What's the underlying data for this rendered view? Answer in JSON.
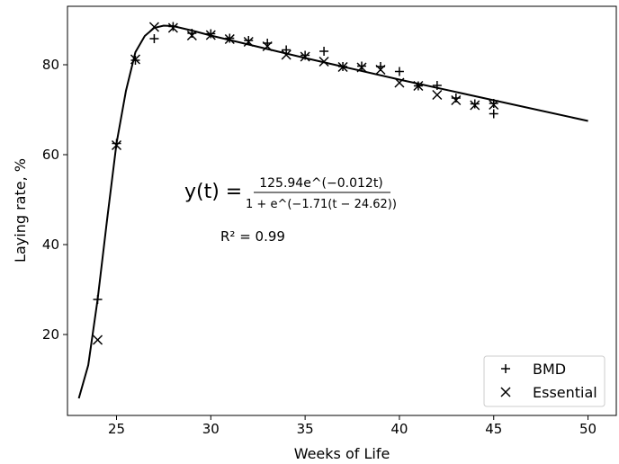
{
  "chart_data": {
    "type": "scatter",
    "title": "",
    "xlabel": "Weeks of Life",
    "ylabel": "Laying rate, %",
    "xlim": [
      22.4,
      51.5
    ],
    "ylim": [
      2,
      93
    ],
    "xticks": [
      25,
      30,
      35,
      40,
      45,
      50
    ],
    "yticks": [
      20,
      40,
      60,
      80
    ],
    "grid": false,
    "legend_position": "lower-right",
    "annotations": {
      "equation_lhs": "y(t) =",
      "equation_numerator": "125.94e^(−0.012t)",
      "equation_denominator": "1 + e^(−1.71(t − 24.62))",
      "r_squared": "R² = 0.99"
    },
    "series": [
      {
        "name": "BMD",
        "marker": "plus",
        "color": "#000000",
        "x": [
          24,
          25,
          26,
          27,
          28,
          29,
          30,
          31,
          32,
          33,
          34,
          35,
          36,
          37,
          38,
          39,
          40,
          41,
          42,
          43,
          44,
          45,
          45
        ],
        "y": [
          27.8,
          62.5,
          81.0,
          85.8,
          88.5,
          87.0,
          86.9,
          85.9,
          85.4,
          84.8,
          83.3,
          82.1,
          83.0,
          79.6,
          79.7,
          79.6,
          78.5,
          75.3,
          75.4,
          72.6,
          71.3,
          71.4,
          69.1
        ]
      },
      {
        "name": "Essential",
        "marker": "x",
        "color": "#000000",
        "x": [
          24,
          25,
          26,
          27,
          28,
          29,
          30,
          31,
          32,
          33,
          34,
          35,
          36,
          37,
          38,
          39,
          40,
          41,
          42,
          43,
          44,
          45
        ],
        "y": [
          18.8,
          62.1,
          81.2,
          88.4,
          88.2,
          86.5,
          86.6,
          85.7,
          85.1,
          84.1,
          82.2,
          81.8,
          80.7,
          79.5,
          79.4,
          78.9,
          76.0,
          75.3,
          73.3,
          72.1,
          71.0,
          71.1
        ]
      },
      {
        "name": "",
        "marker": "none",
        "line": true,
        "color": "#000000",
        "x": [
          23,
          23.5,
          24,
          24.5,
          25,
          25.5,
          26,
          26.5,
          27,
          27.5,
          28,
          29,
          30,
          32,
          35,
          40,
          45,
          50
        ],
        "y": [
          5.8,
          13.2,
          27.8,
          45.5,
          62.5,
          74.2,
          82.8,
          86.4,
          88.2,
          88.7,
          88.6,
          87.6,
          86.5,
          84.5,
          81.5,
          76.7,
          72.1,
          67.5
        ]
      }
    ]
  }
}
